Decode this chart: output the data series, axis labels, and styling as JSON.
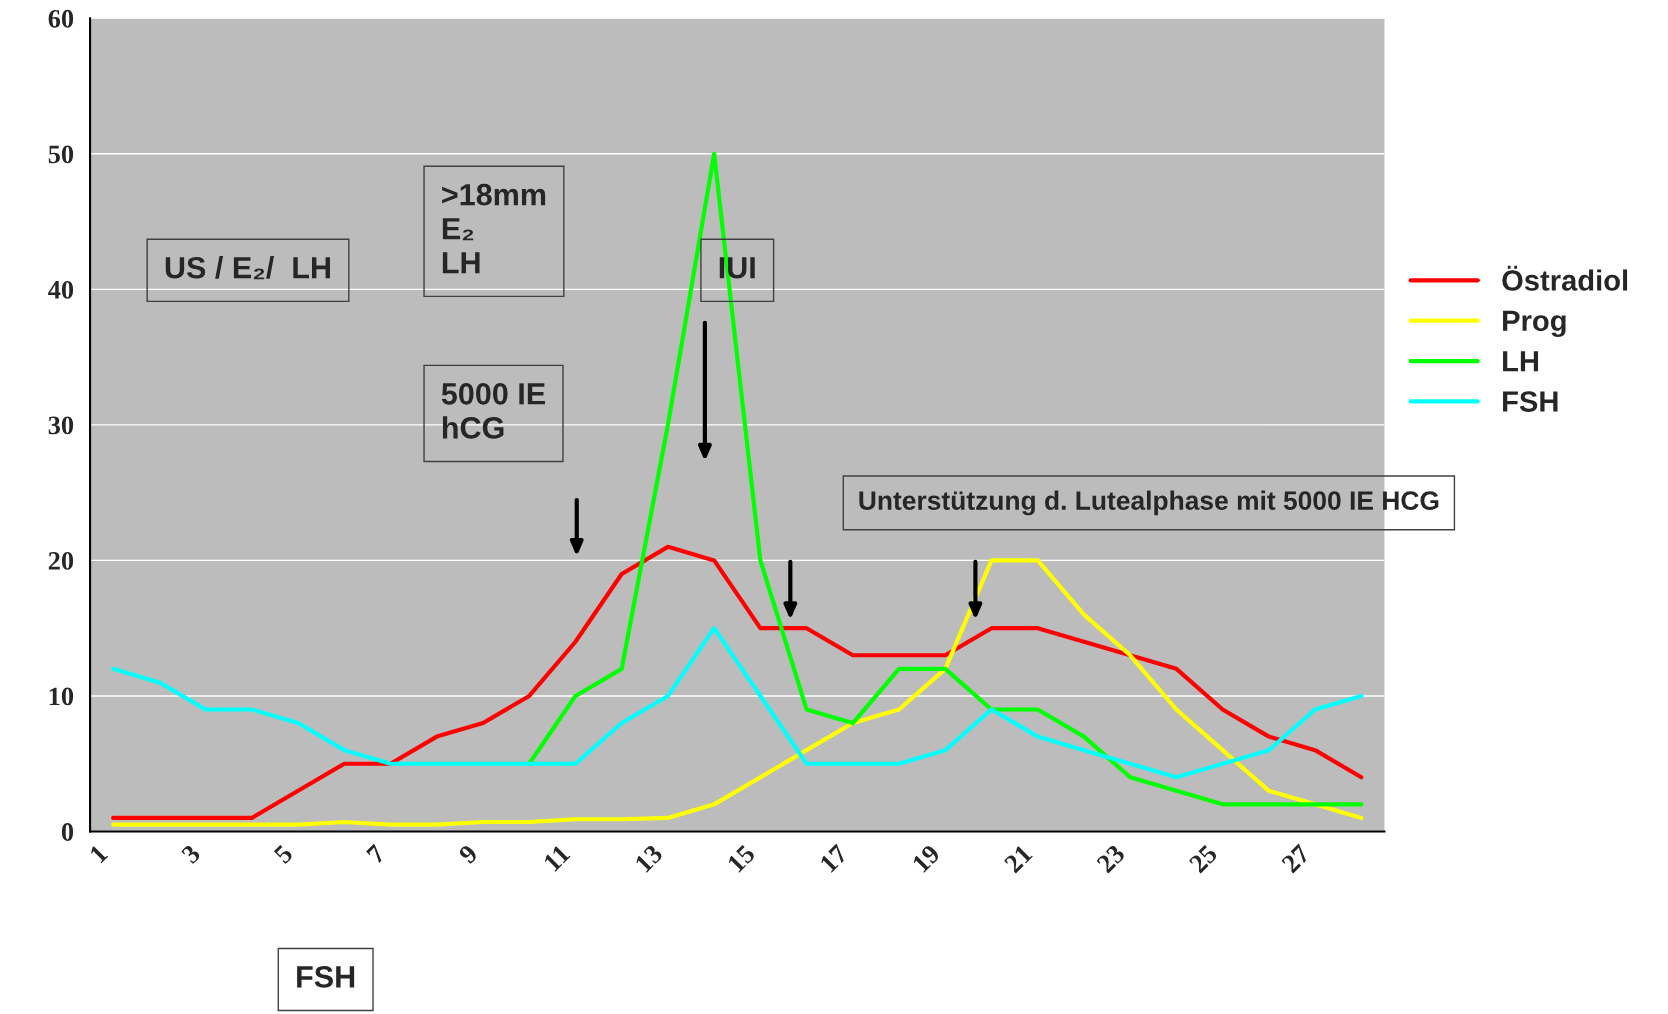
{
  "chart_data": {
    "type": "line",
    "categories": [
      "1",
      null,
      "3",
      null,
      "5",
      null,
      "7",
      null,
      "9",
      null,
      "11",
      null,
      "13",
      null,
      "15",
      null,
      "17",
      null,
      "19",
      null,
      "21",
      null,
      "23",
      null,
      "25",
      null,
      "27",
      null
    ],
    "series": [
      {
        "name": "Östradiol",
        "color": "#ff0000",
        "values": [
          1,
          1,
          1,
          1,
          3,
          5,
          5,
          7,
          8,
          10,
          14,
          19,
          21,
          20,
          15,
          15,
          13,
          13,
          13,
          15,
          15,
          14,
          13,
          12,
          9,
          7,
          6,
          4
        ]
      },
      {
        "name": "Prog",
        "color": "#ffff00",
        "values": [
          0.5,
          0.5,
          0.5,
          0.5,
          0.5,
          0.7,
          0.5,
          0.5,
          0.7,
          0.7,
          0.9,
          0.9,
          1,
          2,
          4,
          6,
          8,
          9,
          12,
          20,
          20,
          16,
          13,
          9,
          6,
          3,
          2,
          1
        ]
      },
      {
        "name": "LH",
        "color": "#00ff00",
        "values": [
          null,
          null,
          null,
          null,
          null,
          null,
          null,
          null,
          null,
          5,
          10,
          12,
          30,
          50,
          20,
          9,
          8,
          12,
          12,
          9,
          9,
          7,
          4,
          3,
          2,
          2,
          2,
          2
        ]
      },
      {
        "name": "FSH",
        "color": "#00ffff",
        "values": [
          12,
          11,
          9,
          9,
          8,
          6,
          5,
          5,
          5,
          5,
          5,
          8,
          10,
          15,
          10,
          5,
          5,
          5,
          6,
          9,
          7,
          6,
          5,
          4,
          5,
          6,
          9,
          10
        ]
      }
    ],
    "ylim": [
      0,
      60
    ],
    "yticks": [
      0,
      10,
      20,
      30,
      40,
      50,
      60
    ],
    "grid": "y",
    "legend": "right",
    "marker": "none",
    "line_style": "solid",
    "annotations": [
      "US / E₂/  LH",
      ">18mm\nE₂\nLH",
      "5000 IE\nhCG",
      "IUI",
      "Unterstützung d. Lutealphase mit 5000 IE HCG",
      "FSH"
    ]
  }
}
